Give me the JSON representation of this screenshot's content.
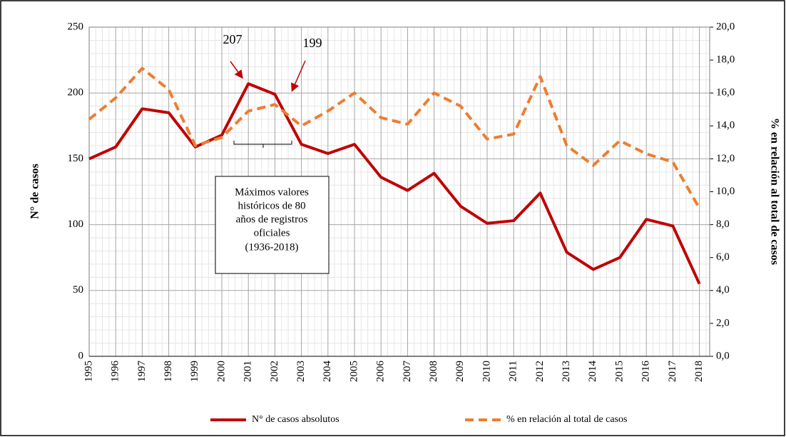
{
  "chart_data": {
    "type": "line",
    "y_label": "N° de casos",
    "y2_label": "% en relación al total de casos",
    "categories": [
      "1995",
      "1996",
      "1997",
      "1998",
      "1999",
      "2000",
      "2001",
      "2002",
      "2003",
      "2004",
      "2005",
      "2006",
      "2007",
      "2008",
      "2009",
      "2010",
      "2011",
      "2012",
      "2013",
      "2014",
      "2015",
      "2016",
      "2017",
      "2018"
    ],
    "series": [
      {
        "name": "N° de casos absolutos",
        "color": "#c00000",
        "dash": false,
        "values": [
          150,
          159,
          188,
          185,
          159,
          168,
          207,
          199,
          161,
          154,
          161,
          136,
          126,
          139,
          114,
          101,
          103,
          124,
          79,
          66,
          75,
          104,
          99,
          55
        ]
      },
      {
        "name": "% en relación al total de casos",
        "color": "#ed7d31",
        "dash": true,
        "axis": "y2",
        "values": [
          14.4,
          15.7,
          17.5,
          16.2,
          12.8,
          13.3,
          14.9,
          15.3,
          14.0,
          14.9,
          16.0,
          14.5,
          14.1,
          16.0,
          15.2,
          13.2,
          13.5,
          17.0,
          12.8,
          11.6,
          13.1,
          12.3,
          11.8,
          9.0
        ]
      }
    ],
    "ylim": [
      0,
      250
    ],
    "yticks": [
      0,
      50,
      100,
      150,
      200,
      250
    ],
    "y2lim": [
      0,
      20
    ],
    "y2ticks": [
      {
        "value": 0,
        "label": "0,0"
      },
      {
        "value": 2,
        "label": "2,0"
      },
      {
        "value": 4,
        "label": "4,0"
      },
      {
        "value": 6,
        "label": "6,0"
      },
      {
        "value": 8,
        "label": "8,0"
      },
      {
        "value": 10,
        "label": "10,0"
      },
      {
        "value": 12,
        "label": "12,0"
      },
      {
        "value": 14,
        "label": "14,0"
      },
      {
        "value": 16,
        "label": "16,0"
      },
      {
        "value": 18,
        "label": "18,0"
      },
      {
        "value": 20,
        "label": "20,0"
      }
    ],
    "grid": true,
    "annotations": [
      "207",
      "199"
    ],
    "note_lines": [
      "Máximos valores",
      "históricos de 80",
      "años de registros",
      "oficiales",
      "(1936-2018)"
    ]
  }
}
